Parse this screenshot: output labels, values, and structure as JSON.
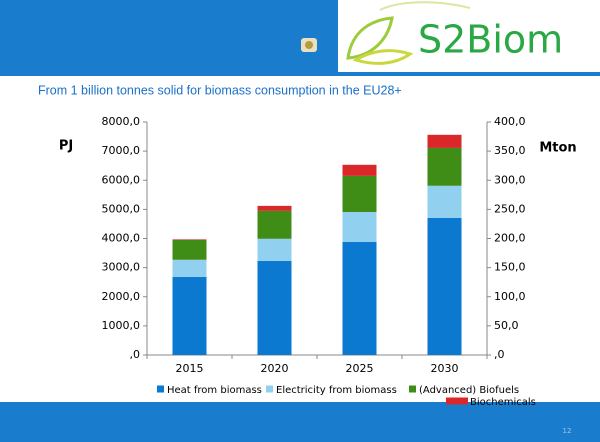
{
  "header": {
    "logo": "S2Biom"
  },
  "chart_data": {
    "type": "stacked_bar",
    "title": "From 1 billion tonnes solid for biomass consumption in the EU28+",
    "y_label": "PJ",
    "y2_label": "Mton",
    "categories": [
      "2015",
      "2020",
      "2025",
      "2030"
    ],
    "series": [
      {
        "name": "Heat from biomass",
        "color": "#0a79cf",
        "values": [
          2680,
          3230,
          3880,
          4710
        ]
      },
      {
        "name": "Electricity from biomass",
        "color": "#92d0f0",
        "values": [
          590,
          760,
          1030,
          1100
        ]
      },
      {
        "name": "(Advanced) Biofuels",
        "color": "#3f8d17",
        "values": [
          680,
          960,
          1240,
          1300
        ]
      },
      {
        "name": "Biochemicals",
        "color": "#d9272a",
        "values": [
          20,
          170,
          380,
          450
        ]
      }
    ],
    "ylim": [
      0,
      8000
    ],
    "yticks": [
      {
        "value": 0,
        "label": ",0"
      },
      {
        "value": 1000,
        "label": "1000,0"
      },
      {
        "value": 2000,
        "label": "2000,0"
      },
      {
        "value": 3000,
        "label": "3000,0"
      },
      {
        "value": 4000,
        "label": "4000,0"
      },
      {
        "value": 5000,
        "label": "5000,0"
      },
      {
        "value": 6000,
        "label": "6000,0"
      },
      {
        "value": 7000,
        "label": "7000,0"
      },
      {
        "value": 8000,
        "label": "8000,0"
      }
    ],
    "y2lim": [
      0,
      400
    ],
    "y2ticks": [
      {
        "value": 0,
        "label": ",0"
      },
      {
        "value": 50,
        "label": "50,0"
      },
      {
        "value": 100,
        "label": "100,0"
      },
      {
        "value": 150,
        "label": "150,0"
      },
      {
        "value": 200,
        "label": "200,0"
      },
      {
        "value": 250,
        "label": "250,0"
      },
      {
        "value": 300,
        "label": "300,0"
      },
      {
        "value": 350,
        "label": "350,0"
      },
      {
        "value": 400,
        "label": "400,0"
      }
    ],
    "grid": false
  },
  "footer": {
    "page_number": "12"
  }
}
